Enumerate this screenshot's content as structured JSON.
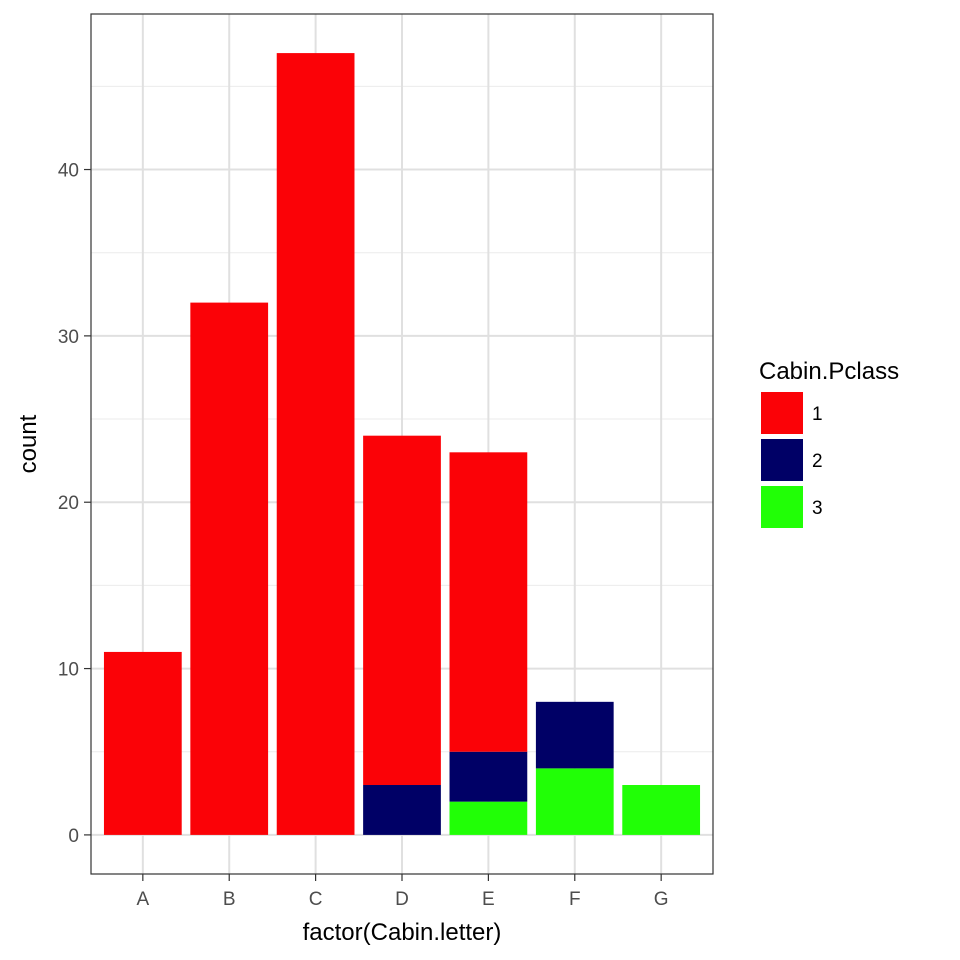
{
  "chart_data": {
    "type": "bar",
    "stacked": true,
    "categories": [
      "A",
      "B",
      "C",
      "D",
      "E",
      "F",
      "G"
    ],
    "series": [
      {
        "name": "1",
        "color": "#fb0207",
        "values": [
          11,
          32,
          47,
          21,
          18,
          0,
          0
        ]
      },
      {
        "name": "2",
        "color": "#000066",
        "values": [
          0,
          0,
          0,
          3,
          3,
          4,
          0
        ]
      },
      {
        "name": "3",
        "color": "#21ff06",
        "values": [
          0,
          0,
          0,
          0,
          2,
          4,
          3
        ]
      }
    ],
    "xlabel": "factor(Cabin.letter)",
    "ylabel": "count",
    "ylim": [
      -2.35,
      49.35
    ],
    "yticks": [
      0,
      10,
      20,
      30,
      40
    ],
    "grid": true,
    "legend": {
      "title": "Cabin.Pclass",
      "placement": "right"
    }
  }
}
